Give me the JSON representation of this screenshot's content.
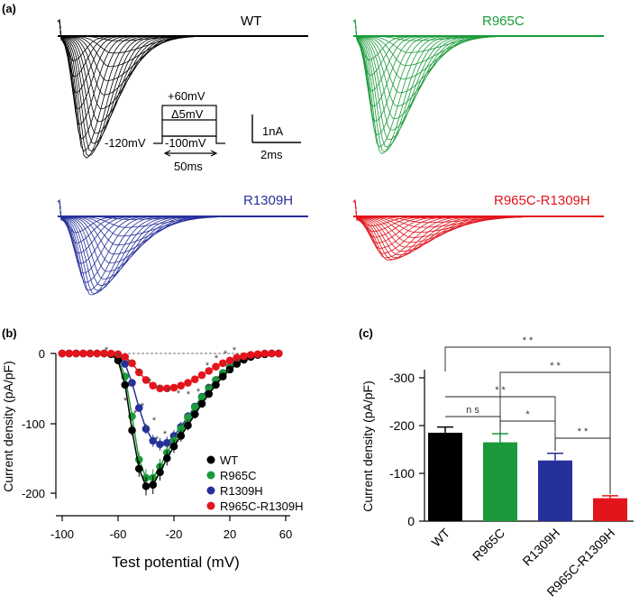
{
  "panel_labels": {
    "a": "(a)",
    "b": "(b)",
    "c": "(c)"
  },
  "colors": {
    "WT": "#000000",
    "R965C": "#1a9a3a",
    "R1309H": "#26309a",
    "R965C-R1309H": "#e3141c"
  },
  "traces": {
    "title_wt": "WT",
    "title_r965c": "R965C",
    "title_r1309h": "R1309H",
    "title_double": "R965C-R1309H",
    "protocol": {
      "top": "+60mV",
      "step": "Δ5mV",
      "hold": "-120mV",
      "pre": "-100mV",
      "duration": "50ms"
    },
    "scale": {
      "current": "1nA",
      "time": "2ms"
    }
  },
  "chart_data": [
    {
      "type": "line",
      "title": "",
      "xlabel": "Test potential (mV)",
      "ylabel": "Current density (pA/pF)",
      "xlim": [
        -105,
        65
      ],
      "ylim": [
        -225,
        5
      ],
      "xticks": [
        -100,
        -60,
        -20,
        20,
        60
      ],
      "yticks": [
        0,
        -100,
        -200
      ],
      "ytick_labels": [
        "0",
        "-100",
        "-200"
      ],
      "x": [
        -100,
        -95,
        -90,
        -85,
        -80,
        -75,
        -70,
        -65,
        -60,
        -55,
        -50,
        -45,
        -40,
        -35,
        -30,
        -25,
        -20,
        -15,
        -10,
        -5,
        0,
        5,
        10,
        15,
        20,
        25,
        30,
        35,
        40,
        45,
        50,
        55
      ],
      "series": [
        {
          "name": "WT",
          "values": [
            0,
            0,
            0,
            0,
            0,
            0,
            0,
            -1,
            -10,
            -45,
            -110,
            -165,
            -190,
            -188,
            -170,
            -150,
            -133,
            -118,
            -103,
            -87,
            -72,
            -58,
            -45,
            -33,
            -23,
            -15,
            -9,
            -5,
            -2,
            -1,
            0,
            0
          ]
        },
        {
          "name": "R965C",
          "values": [
            0,
            0,
            0,
            0,
            0,
            0,
            0,
            -1,
            -7,
            -33,
            -90,
            -152,
            -178,
            -178,
            -162,
            -142,
            -125,
            -108,
            -92,
            -77,
            -63,
            -50,
            -38,
            -28,
            -20,
            -13,
            -8,
            -4,
            -2,
            -1,
            0,
            0
          ]
        },
        {
          "name": "R1309H",
          "values": [
            0,
            0,
            0,
            0,
            0,
            0,
            0,
            -1,
            -3,
            -15,
            -42,
            -78,
            -108,
            -125,
            -130,
            -128,
            -118,
            -105,
            -90,
            -76,
            -62,
            -49,
            -38,
            -28,
            -19,
            -12,
            -7,
            -4,
            -2,
            -1,
            0,
            0
          ]
        },
        {
          "name": "R965C-R1309H",
          "values": [
            0,
            0,
            0,
            0,
            0,
            0,
            0,
            0,
            -1,
            -5,
            -14,
            -27,
            -38,
            -46,
            -50,
            -50,
            -49,
            -46,
            -42,
            -37,
            -31,
            -25,
            -19,
            -14,
            -10,
            -6,
            -4,
            -2,
            -1,
            0,
            0,
            0
          ]
        }
      ],
      "significance_marks": [
        "*",
        "*",
        "*",
        "*",
        "*",
        "*",
        "*",
        "*",
        "*",
        "*",
        "*",
        "*",
        "*",
        "*",
        "*",
        "*",
        "*",
        "*",
        "*",
        "*",
        "*",
        "*",
        "*",
        "*",
        "*",
        "*",
        "*"
      ],
      "legend": [
        "WT",
        "R965C",
        "R1309H",
        "R965C-R1309H"
      ],
      "legend_position": "bottom-right"
    },
    {
      "type": "bar",
      "title": "",
      "xlabel": "",
      "ylabel": "Current density (pA/pF)",
      "categories": [
        "WT",
        "R965C",
        "R1309H",
        "R965C-R1309H"
      ],
      "values": [
        -185,
        -165,
        -127,
        -48
      ],
      "errors": [
        12,
        18,
        15,
        5
      ],
      "ylim": [
        0,
        -310
      ],
      "yticks": [
        0,
        -100,
        -200,
        -300
      ],
      "ytick_labels": [
        "0",
        "-100",
        "-200",
        "-300"
      ],
      "significance": [
        {
          "label": "* *",
          "from": "WT",
          "to": "R965C-R1309H"
        },
        {
          "label": "* *",
          "from": "R965C",
          "to": "R965C-R1309H"
        },
        {
          "label": "* *",
          "from": "WT",
          "to": "R1309H"
        },
        {
          "label": "n s",
          "from": "WT",
          "to": "R965C"
        },
        {
          "label": "*",
          "from": "R965C",
          "to": "R1309H"
        },
        {
          "label": "* *",
          "from": "R1309H",
          "to": "R965C-R1309H"
        }
      ]
    }
  ]
}
